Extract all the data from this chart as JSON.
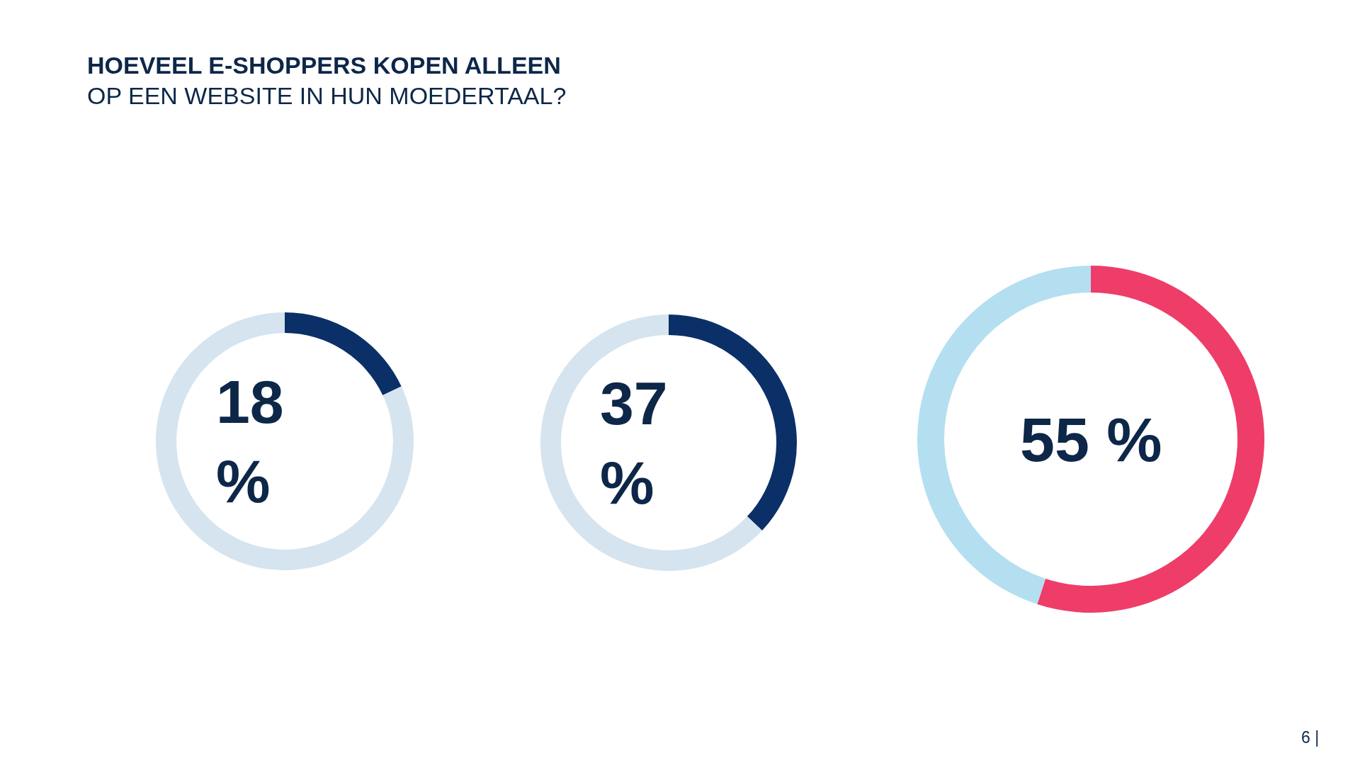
{
  "chart_data": [
    {
      "type": "donut",
      "title": "HOEVEEL E-SHOPPERS KOPEN ALLEEN",
      "subtitle": "OP EEN WEBSITE IN HUN MOEDERTAAL?",
      "categories": [
        null,
        null
      ],
      "values": [
        18,
        82
      ],
      "colors": [
        "#0b3068",
        "#d5e4ee"
      ],
      "annotations": [
        "18\n%"
      ]
    },
    {
      "type": "donut",
      "categories": [
        null,
        null
      ],
      "values": [
        37,
        63
      ],
      "colors": [
        "#0b3068",
        "#d5e4ee"
      ],
      "annotations": [
        "37\n%"
      ]
    },
    {
      "type": "donut",
      "categories": [
        null,
        null
      ],
      "values": [
        55,
        45
      ],
      "colors": [
        "#ee3d68",
        "#b4dff0"
      ],
      "annotations": [
        "55 %",
        "6 |"
      ]
    }
  ]
}
